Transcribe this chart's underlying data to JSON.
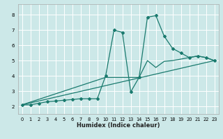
{
  "xlabel": "Humidex (Indice chaleur)",
  "background_color": "#cce8e8",
  "grid_color": "#ffffff",
  "line_color": "#1a7a6e",
  "xlim": [
    -0.5,
    23.5
  ],
  "ylim": [
    1.5,
    8.7
  ],
  "xticks": [
    0,
    1,
    2,
    3,
    4,
    5,
    6,
    7,
    8,
    9,
    10,
    11,
    12,
    13,
    14,
    15,
    16,
    17,
    18,
    19,
    20,
    21,
    22,
    23
  ],
  "yticks": [
    2,
    3,
    4,
    5,
    6,
    7,
    8
  ],
  "series": [
    {
      "x": [
        0,
        1,
        2,
        3,
        4,
        5,
        6,
        7,
        8,
        9,
        10,
        11,
        12,
        13,
        14,
        15,
        16,
        17,
        18,
        19,
        20,
        21,
        22,
        23
      ],
      "y": [
        2.1,
        2.1,
        2.2,
        2.3,
        2.35,
        2.4,
        2.45,
        2.5,
        2.5,
        2.5,
        4.0,
        7.0,
        6.85,
        2.95,
        3.9,
        7.85,
        7.95,
        6.6,
        5.8,
        5.5,
        5.2,
        5.3,
        5.2,
        5.0
      ],
      "marker": "D",
      "markersize": 2.0,
      "linewidth": 0.9
    },
    {
      "x": [
        0,
        10,
        14,
        15,
        16,
        17,
        18,
        19,
        20,
        21,
        22,
        23
      ],
      "y": [
        2.1,
        3.9,
        3.9,
        5.0,
        4.55,
        4.95,
        5.0,
        5.1,
        5.2,
        5.3,
        5.2,
        5.0
      ],
      "marker": null,
      "linewidth": 0.9
    },
    {
      "x": [
        0,
        23
      ],
      "y": [
        2.1,
        5.0
      ],
      "marker": null,
      "linewidth": 0.9
    }
  ]
}
